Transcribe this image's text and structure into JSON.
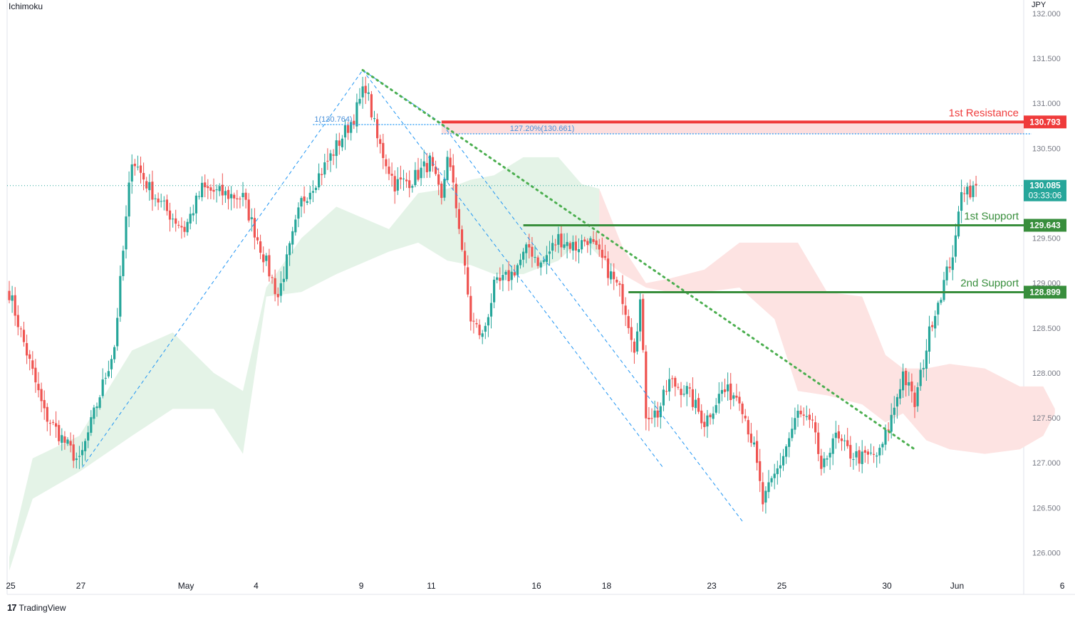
{
  "indicator_label": "Ichimoku",
  "currency_label": "JPY",
  "footer": {
    "logo_glyph": "17",
    "brand": "TradingView"
  },
  "colors": {
    "up": "#26a69a",
    "down": "#ef5350",
    "cloud_bull": "#e4f3e7",
    "cloud_bear": "#fde3e2",
    "resistance": "#ef3b3b",
    "support": "#388e3c",
    "fib": "#2196f3",
    "trendline": "#4caf50",
    "grid": "#e6e6e6"
  },
  "chart_data": {
    "type": "candlestick",
    "ylim": [
      125.75,
      132.15
    ],
    "y_ticks": [
      126.0,
      126.5,
      127.0,
      127.5,
      128.0,
      128.5,
      129.0,
      129.5,
      130.0,
      130.5,
      131.0,
      131.5,
      132.0
    ],
    "y_tick_labels": [
      "126.000",
      "126.500",
      "127.000",
      "127.500",
      "128.000",
      "128.500",
      "129.000",
      "129.500",
      "130.000",
      "130.500",
      "131.000",
      "131.500",
      "132.000"
    ],
    "x_ticks": [
      {
        "label": "25",
        "pos": 0.5
      },
      {
        "label": "27",
        "pos": 24.5
      },
      {
        "label": "May",
        "pos": 60.5
      },
      {
        "label": "4",
        "pos": 84.5
      },
      {
        "label": "9",
        "pos": 120.5
      },
      {
        "label": "11",
        "pos": 144.5
      },
      {
        "label": "16",
        "pos": 180.5
      },
      {
        "label": "18",
        "pos": 204.5
      },
      {
        "label": "23",
        "pos": 240.5
      },
      {
        "label": "25",
        "pos": 264.5
      },
      {
        "label": "30",
        "pos": 300.5
      },
      {
        "label": "Jun",
        "pos": 324.5
      },
      {
        "label": "6",
        "pos": 360.5
      }
    ],
    "anchors": [
      [
        0,
        128.9
      ],
      [
        12,
        127.55
      ],
      [
        24,
        127.0
      ],
      [
        36,
        128.3
      ],
      [
        42,
        130.4
      ],
      [
        48,
        130.05
      ],
      [
        54,
        129.8
      ],
      [
        60,
        129.6
      ],
      [
        66,
        130.05
      ],
      [
        72,
        130.0
      ],
      [
        80,
        129.95
      ],
      [
        92,
        128.85
      ],
      [
        100,
        129.9
      ],
      [
        108,
        130.3
      ],
      [
        118,
        130.85
      ],
      [
        122,
        131.2
      ],
      [
        126,
        130.6
      ],
      [
        132,
        130.1
      ],
      [
        138,
        130.15
      ],
      [
        144,
        130.35
      ],
      [
        148,
        129.9
      ],
      [
        150,
        130.45
      ],
      [
        154,
        129.65
      ],
      [
        158,
        128.6
      ],
      [
        162,
        128.4
      ],
      [
        166,
        128.95
      ],
      [
        172,
        129.1
      ],
      [
        178,
        129.4
      ],
      [
        182,
        129.2
      ],
      [
        188,
        129.5
      ],
      [
        194,
        129.4
      ],
      [
        198,
        129.5
      ],
      [
        204,
        129.2
      ],
      [
        210,
        128.85
      ],
      [
        214,
        128.3
      ],
      [
        216,
        128.8
      ],
      [
        218,
        127.55
      ],
      [
        222,
        127.55
      ],
      [
        226,
        127.9
      ],
      [
        232,
        127.8
      ],
      [
        238,
        127.45
      ],
      [
        244,
        127.8
      ],
      [
        250,
        127.75
      ],
      [
        255,
        127.15
      ],
      [
        258,
        126.55
      ],
      [
        264,
        127.0
      ],
      [
        270,
        127.55
      ],
      [
        276,
        127.35
      ],
      [
        278,
        126.85
      ],
      [
        282,
        127.3
      ],
      [
        288,
        127.1
      ],
      [
        292,
        127.05
      ],
      [
        298,
        127.1
      ],
      [
        302,
        127.5
      ],
      [
        306,
        128.0
      ],
      [
        310,
        127.65
      ],
      [
        316,
        128.6
      ],
      [
        320,
        129.0
      ],
      [
        324,
        129.45
      ],
      [
        326,
        130.07
      ],
      [
        330,
        130.03
      ],
      [
        331,
        130.085
      ]
    ],
    "current_price": 130.085,
    "current_price_label": "130.085",
    "countdown_label": "03:33:06",
    "levels": [
      {
        "name": "1st Resistance",
        "value": 130.793,
        "label": "130.793",
        "type": "resistance",
        "start": 148
      },
      {
        "name": "1st Support",
        "value": 129.643,
        "label": "129.643",
        "type": "support",
        "start": 176
      },
      {
        "name": "2nd Support",
        "value": 128.899,
        "label": "128.899",
        "type": "support",
        "start": 212
      }
    ],
    "resistance_zone": [
      130.661,
      130.793
    ],
    "fib_annotations": [
      {
        "text": "1(130.764)",
        "value": 130.764,
        "start": 104,
        "end": 148
      },
      {
        "text": "127.20%(130.661)",
        "value": 130.661,
        "start": 148,
        "end": 350
      }
    ],
    "fib_pattern_points": [
      [
        25,
        126.95
      ],
      [
        121,
        131.37
      ],
      [
        148,
        130.78
      ],
      [
        251,
        126.35
      ]
    ],
    "fib_channel_offset": 0.55,
    "trendline": [
      [
        121,
        131.37
      ],
      [
        310,
        127.15
      ]
    ],
    "cloud_bull": [
      [
        0,
        125.8,
        125.95
      ],
      [
        8,
        126.6,
        127.05
      ],
      [
        24,
        126.9,
        127.3
      ],
      [
        42,
        127.3,
        128.25
      ],
      [
        56,
        127.6,
        128.45
      ],
      [
        70,
        127.6,
        128.0
      ],
      [
        80,
        127.1,
        127.8
      ],
      [
        88,
        128.85,
        128.95
      ],
      [
        100,
        128.9,
        129.5
      ],
      [
        112,
        129.1,
        129.85
      ],
      [
        130,
        129.35,
        129.6
      ],
      [
        140,
        129.45,
        130.0
      ],
      [
        150,
        129.25,
        130.05
      ],
      [
        158,
        129.2,
        130.15
      ],
      [
        166,
        129.1,
        130.2
      ],
      [
        176,
        129.1,
        130.4
      ],
      [
        188,
        129.25,
        130.4
      ],
      [
        196,
        129.5,
        130.1
      ],
      [
        202,
        129.3,
        130.05
      ]
    ],
    "cloud_bear": [
      [
        202,
        130.05,
        129.3
      ],
      [
        210,
        129.4,
        129.1
      ],
      [
        218,
        128.95,
        129.0
      ],
      [
        226,
        128.9,
        129.05
      ],
      [
        238,
        128.9,
        129.15
      ],
      [
        250,
        128.95,
        129.45
      ],
      [
        262,
        129.45,
        128.6
      ],
      [
        270,
        129.45,
        127.8
      ],
      [
        280,
        128.9,
        127.75
      ],
      [
        292,
        128.85,
        127.65
      ],
      [
        300,
        128.2,
        127.45
      ],
      [
        306,
        128.05,
        127.55
      ],
      [
        314,
        128.05,
        127.25
      ],
      [
        322,
        128.1,
        127.15
      ],
      [
        334,
        128.05,
        127.1
      ],
      [
        346,
        127.85,
        127.15
      ],
      [
        354,
        127.85,
        127.3
      ],
      [
        358,
        127.6,
        127.55
      ]
    ]
  }
}
